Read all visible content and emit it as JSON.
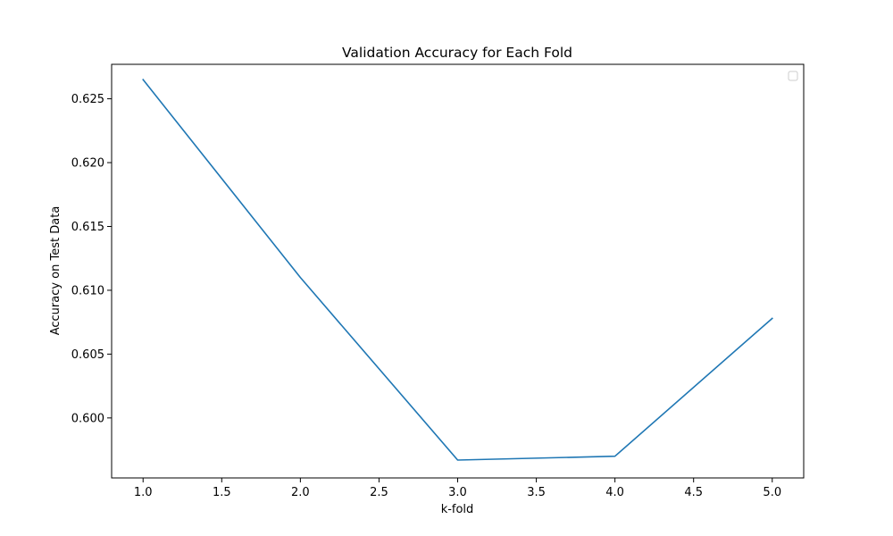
{
  "chart_data": {
    "type": "line",
    "title": "Validation Accuracy for Each Fold",
    "xlabel": "k-fold",
    "ylabel": "Accuracy on Test Data",
    "xlim": [
      0.8,
      5.2
    ],
    "ylim": [
      0.5953,
      0.6277
    ],
    "xticks": [
      1.0,
      1.5,
      2.0,
      2.5,
      3.0,
      3.5,
      4.0,
      4.5,
      5.0
    ],
    "xtick_labels": [
      "1.0",
      "1.5",
      "2.0",
      "2.5",
      "3.0",
      "3.5",
      "4.0",
      "4.5",
      "5.0"
    ],
    "yticks": [
      0.6,
      0.605,
      0.61,
      0.615,
      0.62,
      0.625
    ],
    "ytick_labels": [
      "0.600",
      "0.605",
      "0.610",
      "0.615",
      "0.620",
      "0.625"
    ],
    "series": [
      {
        "x": [
          1,
          2,
          3,
          4,
          5
        ],
        "y": [
          0.6265,
          0.611,
          0.5967,
          0.597,
          0.6078
        ],
        "color": "#1f77b4"
      }
    ],
    "grid": false,
    "legend": {
      "position": "upper right",
      "entries": []
    }
  }
}
